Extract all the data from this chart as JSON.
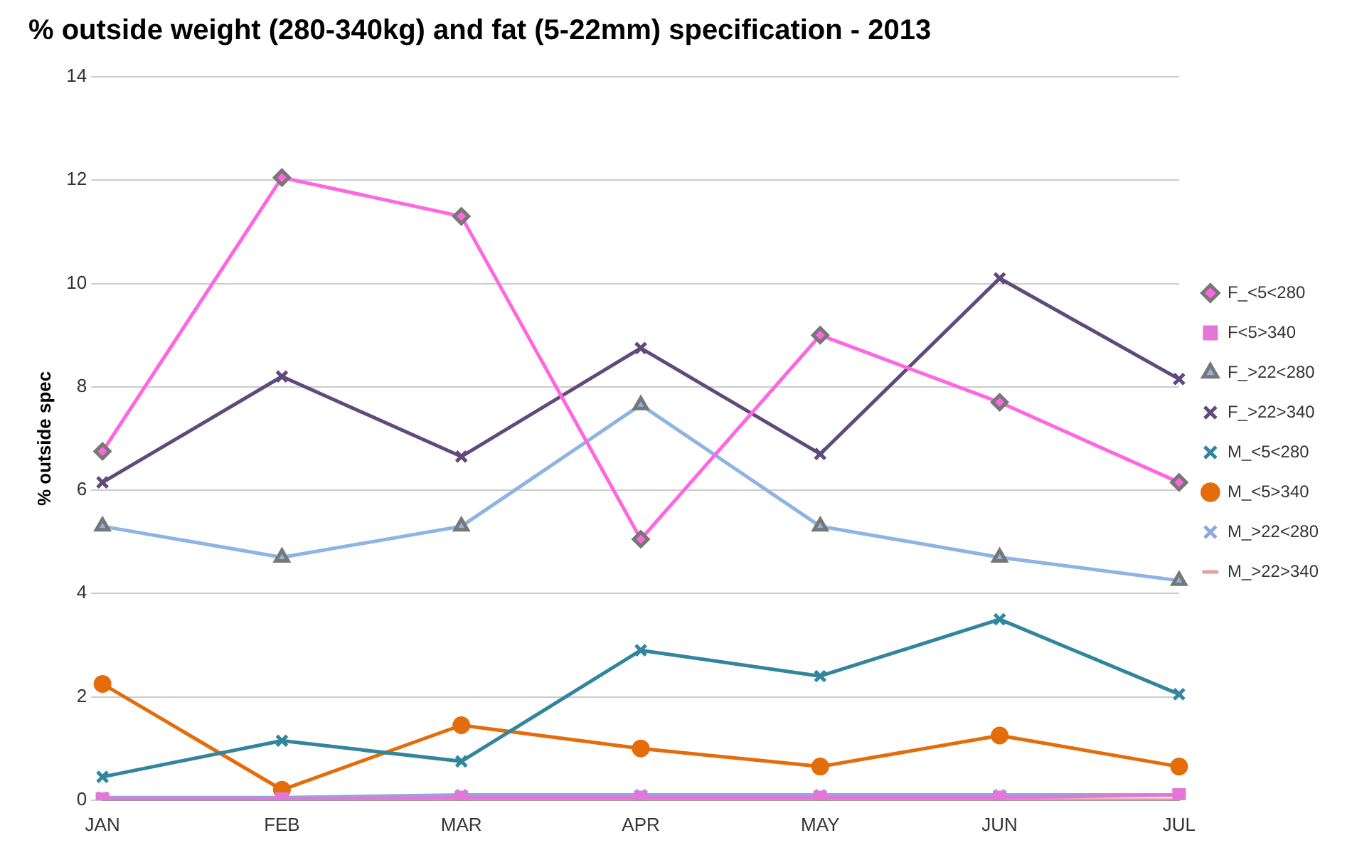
{
  "chart_data": {
    "type": "line",
    "title": "% outside weight (280-340kg) and fat (5-22mm) specification - 2013",
    "ylabel": "% outside spec",
    "categories": [
      "JAN",
      "FEB",
      "MAR",
      "APR",
      "MAY",
      "JUN",
      "JUL"
    ],
    "series": [
      {
        "name": "F_<5<280",
        "color": "#ff66e0",
        "marker": "diamond",
        "values": [
          6.75,
          12.05,
          11.3,
          5.05,
          9.0,
          7.7,
          6.15
        ]
      },
      {
        "name": "F<5>340",
        "color": "#e377d8",
        "marker": "square",
        "values": [
          0.02,
          0.02,
          0.05,
          0.05,
          0.05,
          0.05,
          0.1
        ]
      },
      {
        "name": "F_>22<280",
        "color": "#8db4e2",
        "marker": "triangle",
        "values": [
          5.3,
          4.7,
          5.3,
          7.65,
          5.3,
          4.7,
          4.25
        ]
      },
      {
        "name": "F_>22>340",
        "color": "#604a7b",
        "marker": "cross",
        "values": [
          6.15,
          8.2,
          6.65,
          8.75,
          6.7,
          10.1,
          8.15
        ]
      },
      {
        "name": "M_<5<280",
        "color": "#31859c",
        "marker": "cross",
        "values": [
          0.45,
          1.15,
          0.75,
          2.9,
          2.4,
          3.5,
          2.05
        ]
      },
      {
        "name": "M_<5>340",
        "color": "#e46c0a",
        "marker": "circle",
        "values": [
          2.25,
          0.2,
          1.45,
          1.0,
          0.65,
          1.25,
          0.65
        ]
      },
      {
        "name": "M_>22<280",
        "color": "#8ea9db",
        "marker": "cross",
        "values": [
          0.05,
          0.05,
          0.1,
          0.1,
          0.1,
          0.1,
          0.1
        ]
      },
      {
        "name": "M_>22>340",
        "color": "#e6a09a",
        "marker": "none",
        "values": [
          0,
          0,
          0,
          0,
          0,
          0,
          0
        ]
      }
    ],
    "ylim": [
      0,
      14
    ],
    "yticks": [
      0,
      2,
      4,
      6,
      8,
      10,
      12,
      14
    ],
    "grid": "y",
    "legend": "right",
    "line_style": "solid"
  }
}
